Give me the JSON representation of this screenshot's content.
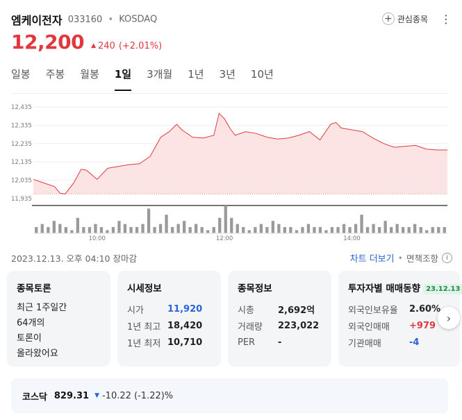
{
  "header": {
    "name": "엠케이전자",
    "code": "033160",
    "separator": "•",
    "market": "KOSDAQ",
    "watch_label": "관심종목",
    "more_icon": "more-vertical-icon"
  },
  "price": {
    "current": "12,200",
    "change": "240",
    "change_pct": "(+2.01%)",
    "direction": "up",
    "color": "#e0383e"
  },
  "tabs": [
    "일봉",
    "주봉",
    "월봉",
    "1일",
    "3개월",
    "1년",
    "3년",
    "10년"
  ],
  "active_tab": "1일",
  "chart_data": {
    "type": "area",
    "y_ticks": [
      "12,435",
      "12,335",
      "12,235",
      "12,135",
      "12,035",
      "11,935"
    ],
    "ylim": [
      11935,
      12435
    ],
    "x_ticks": [
      "10:00",
      "12:00",
      "14:00"
    ],
    "x_tick_minutes": [
      600,
      720,
      840
    ],
    "x_range_minutes": [
      540,
      930
    ],
    "previous_close": 11960,
    "series": [
      {
        "x": [
          540,
          550,
          560,
          565,
          570,
          578,
          585,
          590,
          600,
          610,
          620,
          630,
          640,
          650,
          660,
          668,
          675,
          680,
          690,
          700,
          710,
          715,
          720,
          725,
          730,
          740,
          750,
          760,
          770,
          780,
          790,
          800,
          810,
          820,
          825,
          830,
          840,
          850,
          860,
          870,
          880,
          890,
          900,
          910,
          920,
          930
        ],
        "y": [
          12040,
          12020,
          12000,
          11965,
          11960,
          12020,
          12095,
          12090,
          12040,
          12100,
          12110,
          12120,
          12125,
          12165,
          12270,
          12300,
          12340,
          12310,
          12270,
          12265,
          12280,
          12400,
          12370,
          12320,
          12280,
          12300,
          12290,
          12270,
          12260,
          12265,
          12280,
          12300,
          12255,
          12340,
          12350,
          12320,
          12310,
          12300,
          12265,
          12235,
          12215,
          12220,
          12225,
          12205,
          12200,
          12200
        ]
      }
    ],
    "volume": [
      2,
      3,
      2,
      4,
      3,
      2,
      1,
      5,
      2,
      2,
      3,
      2,
      1,
      2,
      4,
      3,
      2,
      2,
      3,
      8,
      2,
      3,
      6,
      2,
      3,
      4,
      2,
      3,
      2,
      1,
      2,
      5,
      9,
      5,
      3,
      2,
      1,
      2,
      3,
      2,
      4,
      3,
      2,
      2,
      1,
      2,
      3,
      2,
      2,
      1,
      2,
      2,
      3,
      2,
      3,
      6,
      2,
      3,
      2,
      4,
      2,
      3,
      2,
      2,
      3,
      2,
      1,
      2,
      2,
      2
    ]
  },
  "date_row": {
    "timestamp": "2023.12.13. 오후 04:10 장마감",
    "more_chart": "차트 더보기",
    "dot": "•",
    "disclaimer": "면책조항",
    "info_icon": "i"
  },
  "cards": {
    "forum": {
      "title": "종목토론",
      "lines": [
        "최근 1주일간",
        "64개의",
        "토론이",
        "올라왔어요"
      ]
    },
    "quote": {
      "title": "시세정보",
      "rows": [
        {
          "k": "시가",
          "v": "11,920"
        },
        {
          "k": "1년 최고",
          "v": "18,420"
        },
        {
          "k": "1년 최저",
          "v": "10,710"
        }
      ]
    },
    "stock_info": {
      "title": "종목정보",
      "rows": [
        {
          "k": "시총",
          "v": "2,692억"
        },
        {
          "k": "거래량",
          "v": "223,022"
        },
        {
          "k": "PER",
          "v": "-"
        }
      ]
    },
    "investor": {
      "title": "투자자별 매매동향",
      "badge": "23.12.13",
      "rows": [
        {
          "k": "외국인보유율",
          "v": "2.60%"
        },
        {
          "k": "외국인매매",
          "v": "+979"
        },
        {
          "k": "기관매매",
          "v": "-4"
        }
      ]
    }
  },
  "next_arrow": "chevron-right-icon",
  "kosdaq": {
    "name": "코스닥",
    "value": "829.31",
    "change": "-10.22 (-1.22)%",
    "direction": "down"
  }
}
